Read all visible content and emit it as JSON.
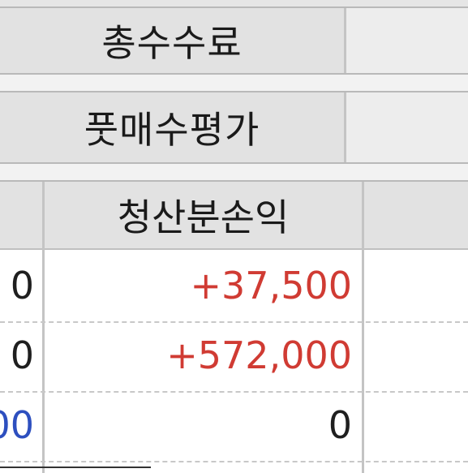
{
  "summary": {
    "total_fee_label": "총수수료",
    "futures_avg_price_label": "풋매수평가"
  },
  "table": {
    "header_label": "청산분손익",
    "rows": [
      {
        "left": "0",
        "pnl": "+37,500"
      },
      {
        "left": "0",
        "pnl": "+572,000"
      },
      {
        "left": "00",
        "pnl": "0"
      }
    ]
  },
  "colors": {
    "positive": "#d03b33",
    "blue_value": "#2d4fbf",
    "header_bg": "#e2e2e2"
  }
}
